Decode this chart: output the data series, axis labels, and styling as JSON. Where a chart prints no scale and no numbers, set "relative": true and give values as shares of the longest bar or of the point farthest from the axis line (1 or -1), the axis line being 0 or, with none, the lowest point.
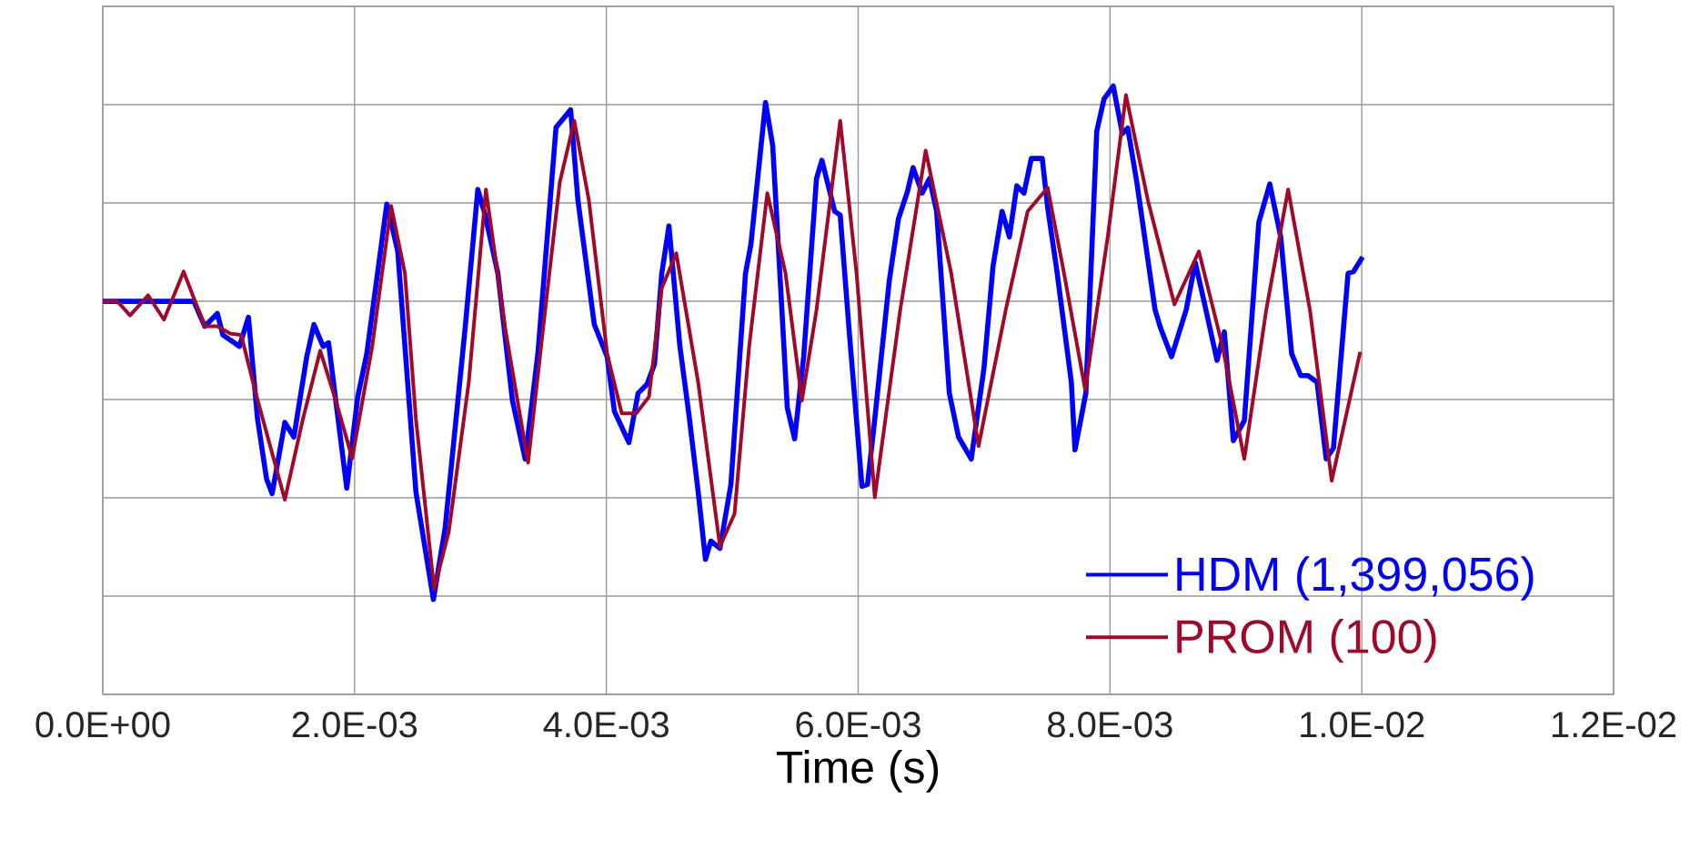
{
  "chart_data": {
    "type": "line",
    "xlabel": "Time (s)",
    "relative": true,
    "grid": true,
    "legend": "bottom right",
    "line_style": "solid",
    "marker": "none",
    "xlim": [
      0,
      0.012
    ],
    "xticks": [
      {
        "value": 0,
        "label": "0.0E+00"
      },
      {
        "value": 0.002,
        "label": "2.0E-03"
      },
      {
        "value": 0.004,
        "label": "4.0E-03"
      },
      {
        "value": 0.006,
        "label": "6.0E-03"
      },
      {
        "value": 0.008,
        "label": "8.0E-03"
      },
      {
        "value": 0.01,
        "label": "1.0E-02"
      },
      {
        "value": 0.012,
        "label": "1.2E-02"
      }
    ],
    "series": [
      {
        "name": "HDM (1,399,056)",
        "color": "#0000ff",
        "x": [
          0,
          0.000723,
          0.00081,
          0.00091,
          0.000954,
          0.001085,
          0.001157,
          0.001229,
          0.001301,
          0.001345,
          0.001446,
          0.001518,
          0.00162,
          0.001677,
          0.00175,
          0.001793,
          0.001938,
          0.002025,
          0.002097,
          0.002256,
          0.002343,
          0.002487,
          0.002626,
          0.002719,
          0.002878,
          0.002979,
          0.003037,
          0.003138,
          0.003254,
          0.003355,
          0.003456,
          0.0036,
          0.003716,
          0.003774,
          0.003904,
          0.004006,
          0.004064,
          0.004179,
          0.004252,
          0.004324,
          0.004382,
          0.00444,
          0.004497,
          0.004584,
          0.004656,
          0.004729,
          0.004787,
          0.00483,
          0.004902,
          0.004989,
          0.005105,
          0.005148,
          0.005264,
          0.005321,
          0.005394,
          0.005437,
          0.005495,
          0.005567,
          0.005669,
          0.005712,
          0.005813,
          0.005857,
          0.005929,
          0.00603,
          0.006074,
          0.006132,
          0.006247,
          0.00632,
          0.006392,
          0.006436,
          0.006508,
          0.006566,
          0.006623,
          0.006724,
          0.006797,
          0.006898,
          0.006999,
          0.007071,
          0.007143,
          0.007201,
          0.00726,
          0.007317,
          0.007375,
          0.007462,
          0.007505,
          0.007577,
          0.007693,
          0.007722,
          0.007808,
          0.007895,
          0.007953,
          0.008026,
          0.008098,
          0.008141,
          0.008213,
          0.008358,
          0.008402,
          0.008489,
          0.008605,
          0.008677,
          0.008749,
          0.00885,
          0.008908,
          0.00898,
          0.009067,
          0.009182,
          0.009269,
          0.009356,
          0.009443,
          0.009515,
          0.009573,
          0.009645,
          0.009717,
          0.009775,
          0.009891,
          0.009934,
          0.010006
        ],
        "values": [
          0.646,
          0.646,
          0.605,
          0.626,
          0.591,
          0.572,
          0.62,
          0.453,
          0.354,
          0.33,
          0.447,
          0.423,
          0.555,
          0.608,
          0.572,
          0.578,
          0.339,
          0.489,
          0.56,
          0.806,
          0.728,
          0.333,
          0.156,
          0.273,
          0.602,
          0.83,
          0.788,
          0.692,
          0.483,
          0.387,
          0.56,
          0.932,
          0.961,
          0.812,
          0.608,
          0.555,
          0.465,
          0.414,
          0.495,
          0.51,
          0.543,
          0.692,
          0.77,
          0.572,
          0.459,
          0.333,
          0.222,
          0.252,
          0.24,
          0.345,
          0.692,
          0.74,
          0.973,
          0.902,
          0.632,
          0.471,
          0.42,
          0.555,
          0.848,
          0.878,
          0.794,
          0.788,
          0.596,
          0.342,
          0.345,
          0.453,
          0.68,
          0.782,
          0.827,
          0.866,
          0.824,
          0.848,
          0.794,
          0.495,
          0.423,
          0.387,
          0.536,
          0.704,
          0.794,
          0.752,
          0.836,
          0.824,
          0.881,
          0.881,
          0.8,
          0.698,
          0.513,
          0.402,
          0.495,
          0.926,
          0.979,
          1.0,
          0.922,
          0.931,
          0.842,
          0.632,
          0.602,
          0.555,
          0.632,
          0.71,
          0.644,
          0.549,
          0.596,
          0.417,
          0.45,
          0.776,
          0.839,
          0.752,
          0.56,
          0.524,
          0.524,
          0.513,
          0.387,
          0.405,
          0.692,
          0.695,
          0.719
        ]
      },
      {
        "name": "PROM (100)",
        "color": "#a00a28",
        "x": [
          0,
          0.000116,
          0.000217,
          0.00036,
          0.000486,
          0.000642,
          0.00081,
          0.00091,
          0.001012,
          0.001099,
          0.001215,
          0.001446,
          0.00159,
          0.001727,
          0.001851,
          0.001981,
          0.00214,
          0.00229,
          0.0024,
          0.002487,
          0.002632,
          0.002748,
          0.002907,
          0.003043,
          0.003196,
          0.003378,
          0.003514,
          0.00363,
          0.003745,
          0.003861,
          0.004006,
          0.004122,
          0.004237,
          0.004338,
          0.00444,
          0.004555,
          0.004729,
          0.004902,
          0.005018,
          0.005134,
          0.005278,
          0.005423,
          0.005553,
          0.005669,
          0.005857,
          0.005987,
          0.006132,
          0.006334,
          0.006536,
          0.006739,
          0.006956,
          0.007172,
          0.007346,
          0.007505,
          0.007635,
          0.007803,
          0.007982,
          0.008127,
          0.008301,
          0.008512,
          0.008706,
          0.008894,
          0.009067,
          0.009241,
          0.009415,
          0.009588,
          0.009761,
          0.009987
        ],
        "values": [
          0.646,
          0.646,
          0.623,
          0.656,
          0.616,
          0.695,
          0.605,
          0.605,
          0.593,
          0.591,
          0.495,
          0.32,
          0.453,
          0.565,
          0.483,
          0.388,
          0.572,
          0.803,
          0.692,
          0.453,
          0.173,
          0.267,
          0.513,
          0.83,
          0.602,
          0.381,
          0.632,
          0.842,
          0.943,
          0.812,
          0.56,
          0.462,
          0.462,
          0.489,
          0.668,
          0.725,
          0.513,
          0.243,
          0.297,
          0.572,
          0.824,
          0.692,
          0.483,
          0.632,
          0.943,
          0.692,
          0.324,
          0.632,
          0.894,
          0.692,
          0.408,
          0.632,
          0.794,
          0.833,
          0.692,
          0.501,
          0.752,
          0.985,
          0.812,
          0.641,
          0.728,
          0.572,
          0.387,
          0.632,
          0.83,
          0.632,
          0.351,
          0.563
        ]
      }
    ]
  }
}
